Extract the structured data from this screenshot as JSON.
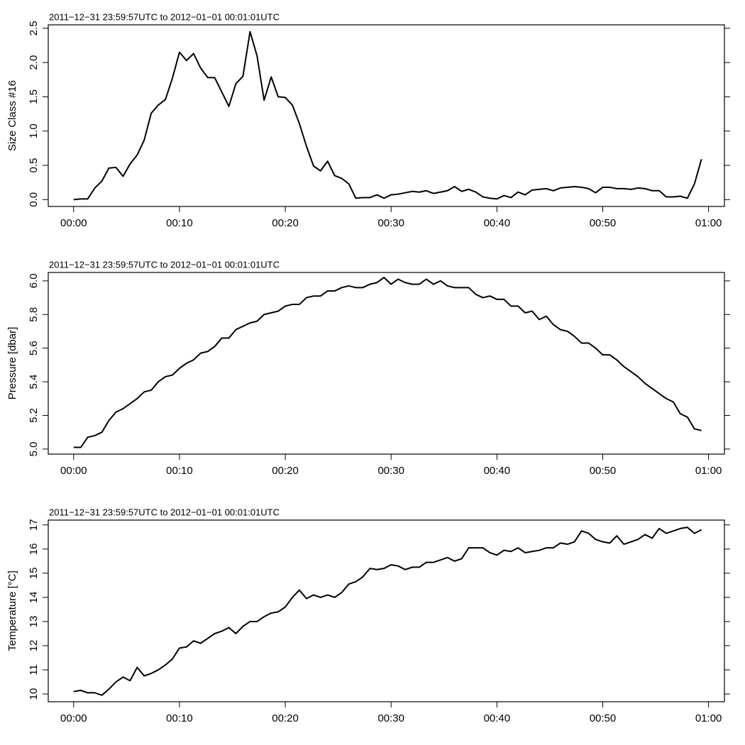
{
  "chart_data": [
    {
      "type": "line",
      "subtitle": "2011−12−31 23:59:57UTC to 2012−01−01 00:01:01UTC",
      "y_label": "Size Class #16",
      "color": "#000000",
      "xlim": [
        -2.4,
        61.5
      ],
      "ylim": [
        -0.1,
        2.55
      ],
      "xticks": [
        {
          "value": 0,
          "label": "00:00"
        },
        {
          "value": 10,
          "label": "00:10"
        },
        {
          "value": 20,
          "label": "00:20"
        },
        {
          "value": 30,
          "label": "00:30"
        },
        {
          "value": 40,
          "label": "00:40"
        },
        {
          "value": 50,
          "label": "00:50"
        },
        {
          "value": 60,
          "label": "01:00"
        }
      ],
      "yticks": [
        {
          "value": 0,
          "label": "0.0"
        },
        0.5,
        {
          "value": 1,
          "label": "1.0"
        },
        1.5,
        {
          "value": 2,
          "label": "2.0"
        },
        2.5
      ],
      "x": [
        0,
        0.67,
        1.33,
        2,
        2.67,
        3.33,
        4,
        4.67,
        5.33,
        6,
        6.67,
        7.33,
        8,
        8.67,
        9.33,
        10,
        10.67,
        11.33,
        12,
        12.67,
        13.33,
        14,
        14.67,
        15.33,
        16,
        16.67,
        17.33,
        18,
        18.67,
        19.33,
        20,
        20.67,
        21.33,
        22,
        22.67,
        23.33,
        24,
        24.67,
        25.33,
        26,
        26.67,
        27.33,
        28,
        28.67,
        29.33,
        30,
        30.67,
        31.33,
        32,
        32.67,
        33.33,
        34,
        34.67,
        35.33,
        36,
        36.67,
        37.33,
        38,
        38.67,
        39.33,
        40,
        40.67,
        41.33,
        42,
        42.67,
        43.33,
        44,
        44.67,
        45.33,
        46,
        46.67,
        47.33,
        48,
        48.67,
        49.33,
        50,
        50.67,
        51.33,
        52,
        52.67,
        53.33,
        54,
        54.67,
        55.33,
        56,
        56.67,
        57.33,
        58,
        58.67,
        59.33
      ],
      "values": [
        0,
        0.01,
        0.01,
        0.17,
        0.27,
        0.46,
        0.47,
        0.34,
        0.52,
        0.65,
        0.87,
        1.26,
        1.38,
        1.46,
        1.77,
        2.15,
        2.03,
        2.13,
        1.92,
        1.78,
        1.78,
        1.57,
        1.36,
        1.69,
        1.8,
        2.45,
        2.1,
        1.45,
        1.79,
        1.5,
        1.49,
        1.38,
        1.11,
        0.78,
        0.49,
        0.42,
        0.56,
        0.35,
        0.31,
        0.23,
        0.02,
        0.03,
        0.03,
        0.07,
        0.02,
        0.07,
        0.08,
        0.1,
        0.12,
        0.11,
        0.13,
        0.09,
        0.11,
        0.13,
        0.19,
        0.12,
        0.15,
        0.11,
        0.04,
        0.02,
        0.01,
        0.06,
        0.03,
        0.11,
        0.07,
        0.14,
        0.15,
        0.16,
        0.13,
        0.17,
        0.18,
        0.19,
        0.18,
        0.16,
        0.1,
        0.18,
        0.18,
        0.16,
        0.16,
        0.15,
        0.17,
        0.16,
        0.13,
        0.13,
        0.04,
        0.04,
        0.05,
        0.02,
        0.23,
        0.59
      ]
    },
    {
      "type": "line",
      "subtitle": "2011−12−31 23:59:57UTC to 2012−01−01 00:01:01UTC",
      "y_label": "Pressure [dbar]",
      "color": "#000000",
      "xlim": [
        -2.4,
        61.5
      ],
      "ylim": [
        4.97,
        6.05
      ],
      "xticks": [
        {
          "value": 0,
          "label": "00:00"
        },
        {
          "value": 10,
          "label": "00:10"
        },
        {
          "value": 20,
          "label": "00:20"
        },
        {
          "value": 30,
          "label": "00:30"
        },
        {
          "value": 40,
          "label": "00:40"
        },
        {
          "value": 50,
          "label": "00:50"
        },
        {
          "value": 60,
          "label": "01:00"
        }
      ],
      "yticks": [
        {
          "value": 5,
          "label": "5.0"
        },
        5.2,
        5.4,
        5.6,
        5.8,
        {
          "value": 6,
          "label": "6.0"
        }
      ],
      "x": [
        0,
        0.67,
        1.33,
        2,
        2.67,
        3.33,
        4,
        4.67,
        5.33,
        6,
        6.67,
        7.33,
        8,
        8.67,
        9.33,
        10,
        10.67,
        11.33,
        12,
        12.67,
        13.33,
        14,
        14.67,
        15.33,
        16,
        16.67,
        17.33,
        18,
        18.67,
        19.33,
        20,
        20.67,
        21.33,
        22,
        22.67,
        23.33,
        24,
        24.67,
        25.33,
        26,
        26.67,
        27.33,
        28,
        28.67,
        29.33,
        30,
        30.67,
        31.33,
        32,
        32.67,
        33.33,
        34,
        34.67,
        35.33,
        36,
        36.67,
        37.33,
        38,
        38.67,
        39.33,
        40,
        40.67,
        41.33,
        42,
        42.67,
        43.33,
        44,
        44.67,
        45.33,
        46,
        46.67,
        47.33,
        48,
        48.67,
        49.33,
        50,
        50.67,
        51.33,
        52,
        52.67,
        53.33,
        54,
        54.67,
        55.33,
        56,
        56.67,
        57.33,
        58,
        58.67,
        59.33
      ],
      "values": [
        5.01,
        5.01,
        5.07,
        5.08,
        5.1,
        5.17,
        5.22,
        5.24,
        5.27,
        5.3,
        5.34,
        5.35,
        5.4,
        5.43,
        5.44,
        5.48,
        5.51,
        5.53,
        5.57,
        5.58,
        5.61,
        5.66,
        5.66,
        5.71,
        5.73,
        5.75,
        5.76,
        5.8,
        5.81,
        5.82,
        5.85,
        5.86,
        5.86,
        5.9,
        5.91,
        5.91,
        5.94,
        5.94,
        5.96,
        5.97,
        5.96,
        5.96,
        5.98,
        5.99,
        6.02,
        5.98,
        6.01,
        5.99,
        5.98,
        5.98,
        6.01,
        5.98,
        6,
        5.97,
        5.96,
        5.96,
        5.96,
        5.92,
        5.9,
        5.91,
        5.89,
        5.89,
        5.85,
        5.85,
        5.81,
        5.82,
        5.77,
        5.79,
        5.74,
        5.71,
        5.7,
        5.67,
        5.63,
        5.63,
        5.6,
        5.56,
        5.56,
        5.53,
        5.49,
        5.46,
        5.43,
        5.39,
        5.36,
        5.33,
        5.3,
        5.28,
        5.21,
        5.19,
        5.12,
        5.11
      ]
    },
    {
      "type": "line",
      "subtitle": "2011−12−31 23:59:57UTC to 2012−01−01 00:01:01UTC",
      "y_label": "Temperature [°C]",
      "color": "#000000",
      "xlim": [
        -2.4,
        61.5
      ],
      "ylim": [
        9.68,
        17.2
      ],
      "xticks": [
        {
          "value": 0,
          "label": "00:00"
        },
        {
          "value": 10,
          "label": "00:10"
        },
        {
          "value": 20,
          "label": "00:20"
        },
        {
          "value": 30,
          "label": "00:30"
        },
        {
          "value": 40,
          "label": "00:40"
        },
        {
          "value": 50,
          "label": "00:50"
        },
        {
          "value": 60,
          "label": "01:00"
        }
      ],
      "yticks": [
        10,
        11,
        12,
        13,
        14,
        15,
        16,
        17
      ],
      "x": [
        0,
        0.67,
        1.33,
        2,
        2.67,
        3.33,
        4,
        4.67,
        5.33,
        6,
        6.67,
        7.33,
        8,
        8.67,
        9.33,
        10,
        10.67,
        11.33,
        12,
        12.67,
        13.33,
        14,
        14.67,
        15.33,
        16,
        16.67,
        17.33,
        18,
        18.67,
        19.33,
        20,
        20.67,
        21.33,
        22,
        22.67,
        23.33,
        24,
        24.67,
        25.33,
        26,
        26.67,
        27.33,
        28,
        28.67,
        29.33,
        30,
        30.67,
        31.33,
        32,
        32.67,
        33.33,
        34,
        34.67,
        35.33,
        36,
        36.67,
        37.33,
        38,
        38.67,
        39.33,
        40,
        40.67,
        41.33,
        42,
        42.67,
        43.33,
        44,
        44.67,
        45.33,
        46,
        46.67,
        47.33,
        48,
        48.67,
        49.33,
        50,
        50.67,
        51.33,
        52,
        52.67,
        53.33,
        54,
        54.67,
        55.33,
        56,
        56.67,
        57.33,
        58,
        58.67,
        59.33
      ],
      "values": [
        10.1,
        10.15,
        10.05,
        10.05,
        9.95,
        10.2,
        10.5,
        10.7,
        10.55,
        11.1,
        10.75,
        10.85,
        11,
        11.2,
        11.45,
        11.9,
        11.95,
        12.2,
        12.1,
        12.3,
        12.5,
        12.6,
        12.75,
        12.5,
        12.8,
        13,
        13,
        13.2,
        13.35,
        13.4,
        13.6,
        14,
        14.3,
        13.95,
        14.1,
        14,
        14.1,
        14,
        14.2,
        14.55,
        14.65,
        14.85,
        15.2,
        15.15,
        15.2,
        15.35,
        15.3,
        15.15,
        15.25,
        15.25,
        15.45,
        15.45,
        15.55,
        15.65,
        15.5,
        15.6,
        16.05,
        16.05,
        16.05,
        15.85,
        15.75,
        15.95,
        15.9,
        16.05,
        15.85,
        15.9,
        15.95,
        16.05,
        16.05,
        16.25,
        16.2,
        16.3,
        16.75,
        16.65,
        16.4,
        16.3,
        16.25,
        16.55,
        16.2,
        16.3,
        16.4,
        16.6,
        16.45,
        16.85,
        16.65,
        16.75,
        16.85,
        16.9,
        16.65,
        16.8
      ]
    }
  ]
}
